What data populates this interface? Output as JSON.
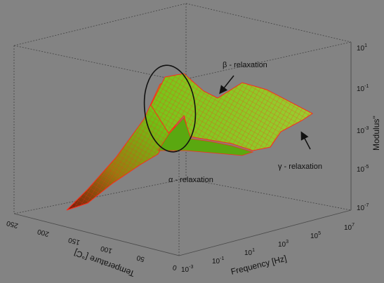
{
  "chart_data": {
    "type": "surface3d",
    "x_axis": {
      "label": "Frequency [Hz]",
      "scale": "log",
      "range": [
        0.001,
        10000000
      ],
      "tick_labels": [
        "10^-3",
        "10^-1",
        "10^1",
        "10^3",
        "10^5",
        "10^7"
      ]
    },
    "y_axis": {
      "label": "Temperature [°C]",
      "range": [
        0,
        250
      ],
      "tick_labels": [
        "0",
        "50",
        "100",
        "150",
        "200",
        "250"
      ]
    },
    "z_axis": {
      "label": "Modulus''",
      "scale": "log",
      "range": [
        1e-07,
        10
      ],
      "tick_labels": [
        "10^-7",
        "10^-5",
        "10^-3",
        "10^-1",
        "10^1"
      ]
    },
    "annotations": [
      {
        "id": "alpha",
        "text": "α - relaxation"
      },
      {
        "id": "beta",
        "text": "β - relaxation"
      },
      {
        "id": "gamma",
        "text": "γ - relaxation"
      }
    ],
    "grid": true,
    "colors": {
      "surface_fill": "#6fbf14",
      "mesh_lines": "#ff2a1a",
      "box_lines": "#4c4c4c"
    }
  }
}
